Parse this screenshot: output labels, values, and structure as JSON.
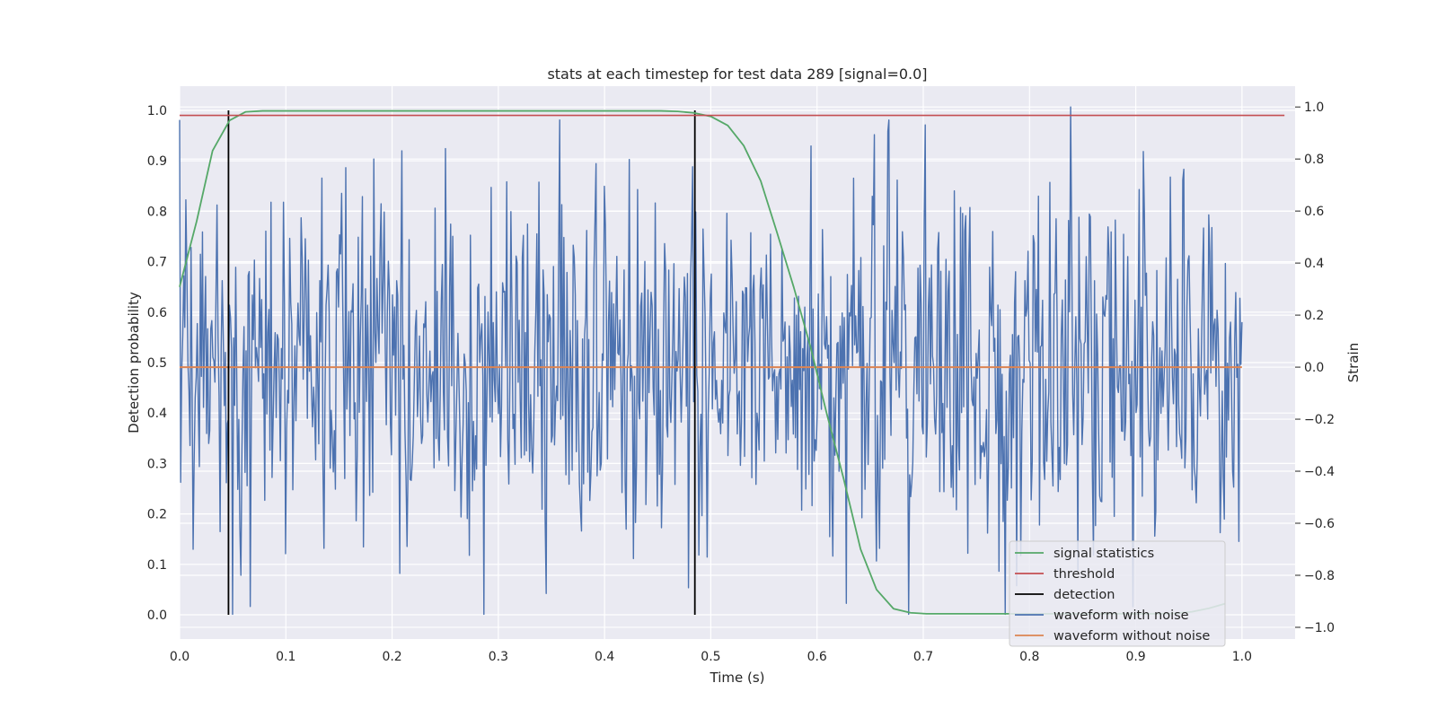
{
  "chart_data": {
    "type": "line",
    "title": "stats at each timestep for test data 289 [signal=0.0]",
    "xlabel": "Time (s)",
    "ylabel": "Detection probability",
    "ylabel_right": "Strain",
    "xlim": [
      0.0,
      1.05
    ],
    "ylim": [
      -0.048,
      1.048
    ],
    "ylim_right": [
      -1.045,
      1.08
    ],
    "grid": true,
    "legend_position": "lower-right",
    "x_ticks": [
      "0.0",
      "0.1",
      "0.2",
      "0.3",
      "0.4",
      "0.5",
      "0.6",
      "0.7",
      "0.8",
      "0.9",
      "1.0"
    ],
    "y_ticks": [
      "0.0",
      "0.1",
      "0.2",
      "0.3",
      "0.4",
      "0.5",
      "0.6",
      "0.7",
      "0.8",
      "0.9",
      "1.0"
    ],
    "y_ticks_right": [
      "−1.0",
      "−0.8",
      "−0.6",
      "−0.4",
      "−0.2",
      "0.0",
      "0.2",
      "0.4",
      "0.6",
      "0.8",
      "1.0"
    ],
    "series": [
      {
        "name": "signal statistics",
        "axis": "left",
        "color": "#55a868",
        "x": [
          0.0,
          0.016,
          0.031,
          0.047,
          0.062,
          0.078,
          0.094,
          0.109,
          0.125,
          0.141,
          0.156,
          0.172,
          0.188,
          0.203,
          0.219,
          0.234,
          0.25,
          0.266,
          0.281,
          0.297,
          0.312,
          0.328,
          0.344,
          0.359,
          0.375,
          0.391,
          0.406,
          0.422,
          0.438,
          0.453,
          0.469,
          0.484,
          0.5,
          0.516,
          0.531,
          0.547,
          0.562,
          0.578,
          0.594,
          0.609,
          0.625,
          0.641,
          0.656,
          0.672,
          0.688,
          0.703,
          0.719,
          0.734,
          0.75,
          0.766,
          0.781,
          0.797,
          0.812,
          0.828,
          0.844,
          0.859,
          0.875,
          0.891,
          0.906,
          0.922,
          0.938,
          0.953,
          0.969,
          0.984
        ],
        "values": [
          0.65,
          0.78,
          0.92,
          0.98,
          0.997,
          0.999,
          0.999,
          0.999,
          0.999,
          0.999,
          0.999,
          0.999,
          0.999,
          0.999,
          0.999,
          0.999,
          0.999,
          0.999,
          0.999,
          0.999,
          0.999,
          0.999,
          0.999,
          0.999,
          0.999,
          0.999,
          0.999,
          0.999,
          0.999,
          0.999,
          0.998,
          0.995,
          0.988,
          0.97,
          0.93,
          0.86,
          0.76,
          0.65,
          0.53,
          0.4,
          0.27,
          0.13,
          0.05,
          0.012,
          0.004,
          0.002,
          0.002,
          0.002,
          0.002,
          0.002,
          0.002,
          0.002,
          0.002,
          0.002,
          0.002,
          0.002,
          0.002,
          0.002,
          0.002,
          0.002,
          0.003,
          0.006,
          0.013,
          0.022
        ]
      },
      {
        "name": "threshold",
        "axis": "left",
        "color": "#c44e52",
        "x": [
          0.0,
          1.04
        ],
        "values": [
          0.99,
          0.99
        ]
      },
      {
        "name": "detection",
        "axis": "left",
        "color": "#000000",
        "segments": [
          {
            "x": 0.046,
            "from": 0.0,
            "to": 1.0
          },
          {
            "x": 0.485,
            "from": 0.0,
            "to": 1.0
          }
        ]
      },
      {
        "name": "waveform with noise",
        "axis": "right",
        "color": "#4c72b0",
        "x_range": [
          0.0,
          1.0
        ],
        "sample_count": 1024,
        "std": 0.33,
        "notable_points": [
          {
            "x": 0.013,
            "y": -0.7
          },
          {
            "x": 0.058,
            "y": -0.8
          },
          {
            "x": 0.066,
            "y": -0.92
          },
          {
            "x": 0.183,
            "y": 0.8
          },
          {
            "x": 0.25,
            "y": 0.84
          },
          {
            "x": 0.345,
            "y": -0.87
          },
          {
            "x": 0.483,
            "y": 0.77
          },
          {
            "x": 0.594,
            "y": 0.85
          },
          {
            "x": 0.788,
            "y": -0.84
          },
          {
            "x": 0.839,
            "y": 1.0
          },
          {
            "x": 0.846,
            "y": -0.78
          },
          {
            "x": 0.997,
            "y": -0.67
          }
        ]
      },
      {
        "name": "waveform without noise",
        "axis": "right",
        "color": "#dd8452",
        "x": [
          0.0,
          1.0
        ],
        "values": [
          0.0,
          0.0
        ]
      }
    ]
  }
}
